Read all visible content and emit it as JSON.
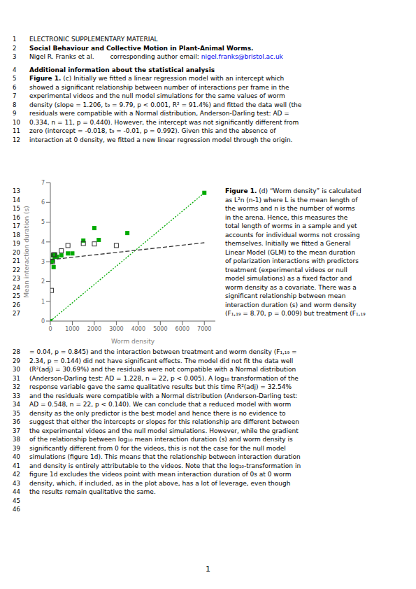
{
  "chart_data": {
    "type": "scatter",
    "xlabel": "Worm density",
    "ylabel": "Mean interaction duration (s)",
    "xlim": [
      0,
      7500
    ],
    "ylim": [
      0,
      7
    ],
    "xticks": [
      0,
      1000,
      2000,
      3000,
      4000,
      5000,
      6000,
      7000
    ],
    "yticks": [
      0,
      1,
      2,
      3,
      4,
      5,
      6,
      7
    ],
    "series": [
      {
        "type": "scatter",
        "color": "#00aa00",
        "marker": "square",
        "values": [
          [
            0,
            0.0
          ],
          [
            50,
            3.0
          ],
          [
            100,
            3.05
          ],
          [
            120,
            3.32
          ],
          [
            150,
            2.73
          ],
          [
            200,
            3.25
          ],
          [
            220,
            3.35
          ],
          [
            300,
            3.25
          ],
          [
            500,
            3.32
          ],
          [
            800,
            3.42
          ],
          [
            1000,
            3.42
          ],
          [
            1500,
            4.07
          ],
          [
            2000,
            4.7
          ],
          [
            2200,
            4.1
          ],
          [
            3500,
            4.45
          ],
          [
            7000,
            6.48
          ]
        ]
      },
      {
        "type": "scatter",
        "color": "#333333",
        "marker": "open_square",
        "values": [
          [
            50,
            1.55
          ],
          [
            100,
            3.0
          ],
          [
            150,
            3.35
          ],
          [
            200,
            3.35
          ],
          [
            500,
            3.55
          ],
          [
            800,
            3.82
          ],
          [
            1500,
            3.92
          ],
          [
            2000,
            3.9
          ],
          [
            3000,
            3.82
          ]
        ]
      },
      {
        "type": "line",
        "color": "#00aa00",
        "line_style": "dotted",
        "values": [
          [
            0,
            0
          ],
          [
            7000,
            6.48
          ]
        ]
      },
      {
        "type": "line",
        "color": "#333333",
        "line_style": "dashed",
        "values": [
          [
            0,
            3.1
          ],
          [
            7000,
            3.96
          ]
        ]
      }
    ],
    "annotations": [
      {
        "num": 1,
        "text": "ELECTRONIC SUPPLEMENTARY MATERIAL"
      },
      {
        "num": 2,
        "bold": "Social Behaviour and Collective Motion in Plant-Animal Worms."
      },
      {
        "num": 3,
        "text": "Nigel R. Franks et al.        corresponding author email: ",
        "link": "nigel.franks@bristol.ac.uk",
        "color": "#0000ee"
      },
      {
        "num": 4,
        "bold": "Additional information about the statistical analysis"
      },
      {
        "num": 5,
        "bold": "Figure 1.",
        "text": " (c) Initially we fitted a linear regression model with an intercept which"
      },
      {
        "num": 6,
        "text": "showed a significant relationship between number of interactions per frame in the"
      },
      {
        "num": 7,
        "text": "experimental videos and the null model simulations for the same values of worm"
      },
      {
        "num": 8,
        "text": "density (slope = 1.206, t₉ = 9.79, p < 0.001, R² = 91.4%) and fitted the data well (the"
      },
      {
        "num": 9,
        "text": "residuals were compatible with a Normal distribution, Anderson-Darling test: AD ="
      },
      {
        "num": 10,
        "text": "0.334, n = 11, p = 0.440). However, the intercept was not significantly different from"
      },
      {
        "num": 11,
        "text": "zero (intercept = -0.018, t₉ = -0.01, p = 0.992). Given this and the absence of"
      },
      {
        "num": 12,
        "text": "interaction at 0 density, we fitted a new linear regression model through the origin."
      },
      {
        "num": 13,
        "bold": "Figure 1.",
        "text": " (d) “Worm density” is calculated"
      },
      {
        "num": 14,
        "text": "as L²n (n-1) where L is the mean length of"
      },
      {
        "num": 15,
        "text": "the worms and n is the number of worms"
      },
      {
        "num": 16,
        "text": "in the arena. Hence, this measures the"
      },
      {
        "num": 17,
        "text": "total length of worms in a sample and yet"
      },
      {
        "num": 18,
        "text": "accounts for individual worms not crossing"
      },
      {
        "num": 19,
        "text": "themselves. Initially we fitted a General"
      },
      {
        "num": 20,
        "text": "Linear Model (GLM) to the mean duration"
      },
      {
        "num": 21,
        "text": "of polarization interactions with predictors"
      },
      {
        "num": 22,
        "text": "treatment (experimental videos or null"
      },
      {
        "num": 23,
        "text": "model simulations) as a fixed factor and"
      },
      {
        "num": 24,
        "text": "worm density as a covariate. There was a"
      },
      {
        "num": 25,
        "text": "significant relationship between mean"
      },
      {
        "num": 26,
        "text": "interaction duration (s) and worm density"
      },
      {
        "num": 27,
        "text": "(F₁,₁₉ = 8.70, p = 0.009) but treatment (F₁,₁₉"
      },
      {
        "num": 28,
        "text": "= 0.04, p = 0.845) and the interaction between treatment and worm density (F₁,₁₉ ="
      },
      {
        "num": 29,
        "text": "2.34, p = 0.144) did not have significant effects. The model did not fit the data well"
      },
      {
        "num": 30,
        "text": "(R²(adj) = 30.69%) and the residuals were not compatible with a Normal distribution"
      },
      {
        "num": 31,
        "text": "(Anderson-Darling test: AD = 1.228, n = 22, p < 0.005). A log₁₀ transformation of the"
      },
      {
        "num": 32,
        "text": "response variable gave the same qualitative results but this time R²(adj) = 32.54%"
      },
      {
        "num": 33,
        "text": "and the residuals were compatible with a Normal distribution (Anderson-Darling test:"
      },
      {
        "num": 34,
        "text": "AD = 0.548, n = 22, p < 0.140). We can conclude that a reduced model with worm"
      },
      {
        "num": 35,
        "text": "density as the only predictor is the best model and hence there is no evidence to"
      },
      {
        "num": 36,
        "text": "suggest that either the intercepts or slopes for this relationship are different between"
      },
      {
        "num": 37,
        "text": "the experimental videos and the null model simulations. However, while the gradient"
      },
      {
        "num": 38,
        "text": "of the relationship between log₁₀ mean interaction duration (s) and worm density is"
      },
      {
        "num": 39,
        "text": "significantly different from 0 for the videos, this is not the case for the null model"
      },
      {
        "num": 40,
        "text": "simulations (figure 1d). This means that the relationship between interaction duration"
      },
      {
        "num": 41,
        "text": "and density is entirely attributable to the videos. Note that the log₁₀-transformation in"
      },
      {
        "num": 42,
        "text": "figure 1d excludes the videos point with mean interaction duration of 0s at 0 worm"
      },
      {
        "num": 43,
        "text": "density, which, if included, as in the plot above, has a lot of leverage, even though"
      },
      {
        "num": 44,
        "text": "the results remain qualitative the same."
      },
      {
        "num": 45
      },
      {
        "num": 46
      }
    ],
    "page_number": 1
  }
}
